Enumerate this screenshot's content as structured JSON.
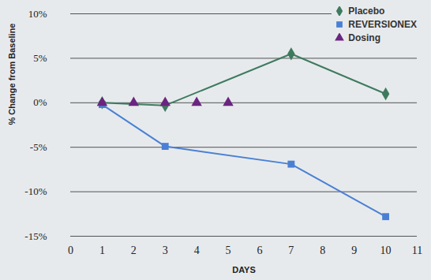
{
  "chart_data": {
    "type": "line",
    "x_label": "DAYS",
    "y_label": "% Change from Baseline",
    "xlim": [
      0,
      11
    ],
    "xticks": [
      0,
      1,
      2,
      3,
      4,
      5,
      6,
      7,
      8,
      9,
      10,
      11
    ],
    "ylim": [
      -15,
      10
    ],
    "yticks": [
      {
        "value": -15,
        "label": "-15%"
      },
      {
        "value": -10,
        "label": "-10%"
      },
      {
        "value": -5,
        "label": "-5%"
      },
      {
        "value": 0,
        "label": "0%"
      },
      {
        "value": 5,
        "label": "5%"
      },
      {
        "value": 10,
        "label": "10%"
      }
    ],
    "grid": true,
    "legend": "top-right",
    "series": [
      {
        "name": "Placebo",
        "type": "line",
        "marker": "diamond",
        "color": "#3e7b5e",
        "x": [
          1,
          3,
          7,
          10
        ],
        "values": [
          0,
          -0.3,
          5.5,
          1
        ]
      },
      {
        "name": "REVERSIONEX",
        "type": "line",
        "marker": "square",
        "color": "#4a80d4",
        "x": [
          1,
          3,
          7,
          10
        ],
        "values": [
          -0.2,
          -4.9,
          -6.9,
          -12.8
        ]
      },
      {
        "name": "Dosing",
        "type": "scatter",
        "marker": "triangle",
        "color": "#6b2480",
        "x": [
          1,
          2,
          3,
          4,
          5
        ],
        "values": [
          0,
          0,
          0,
          0,
          0
        ]
      }
    ]
  }
}
